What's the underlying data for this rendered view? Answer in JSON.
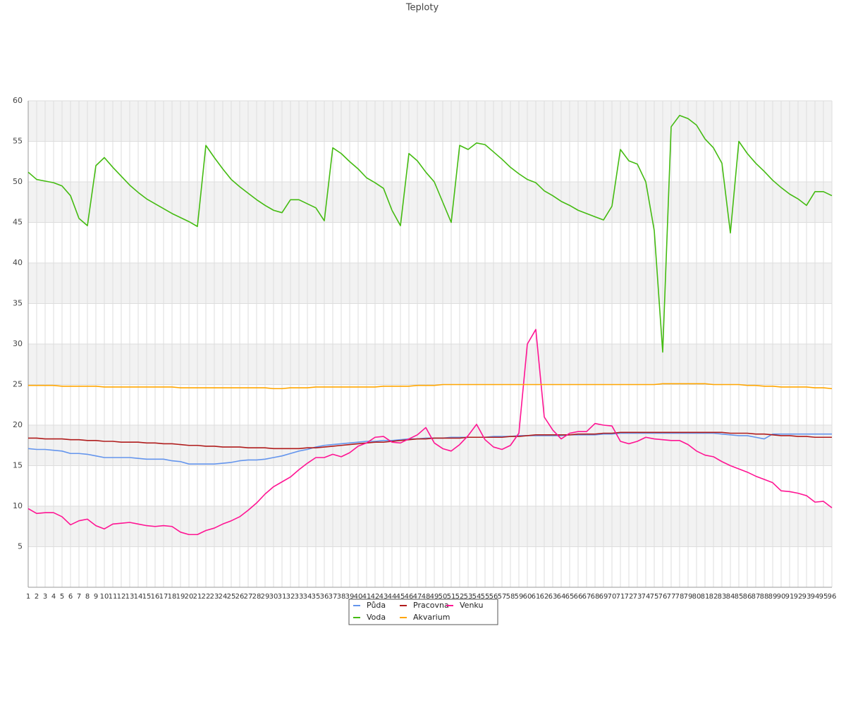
{
  "chart_data": {
    "type": "line",
    "title": "Teploty",
    "categories": [
      1,
      2,
      3,
      4,
      5,
      6,
      7,
      8,
      9,
      10,
      11,
      12,
      13,
      14,
      15,
      16,
      17,
      18,
      19,
      20,
      21,
      22,
      23,
      24,
      25,
      26,
      27,
      28,
      29,
      30,
      31,
      32,
      33,
      34,
      35,
      36,
      37,
      38,
      39,
      40,
      41,
      42,
      43,
      44,
      45,
      46,
      47,
      48,
      49,
      50,
      51,
      52,
      53,
      54,
      55,
      56,
      57,
      58,
      59,
      60,
      61,
      62,
      63,
      64,
      65,
      66,
      67,
      68,
      69,
      70,
      71,
      72,
      73,
      74,
      75,
      76,
      77,
      78,
      79,
      80,
      81,
      82,
      83,
      84,
      85,
      86,
      87,
      88,
      89,
      90,
      91,
      92,
      93,
      94,
      95,
      96
    ],
    "ylim": [
      0,
      60
    ],
    "yticks": [
      5,
      10,
      15,
      20,
      25,
      30,
      35,
      40,
      45,
      50,
      55,
      60
    ],
    "grid": true,
    "series": [
      {
        "name": "Půda",
        "color": "#6495ed",
        "values": [
          17.1,
          17,
          17,
          16.9,
          16.8,
          16.5,
          16.5,
          16.4,
          16.2,
          16,
          16,
          16,
          16,
          15.9,
          15.8,
          15.8,
          15.8,
          15.6,
          15.5,
          15.2,
          15.2,
          15.2,
          15.2,
          15.3,
          15.4,
          15.6,
          15.7,
          15.7,
          15.8,
          16,
          16.2,
          16.5,
          16.8,
          17,
          17.3,
          17.5,
          17.6,
          17.7,
          17.8,
          17.9,
          18,
          18,
          18.1,
          18.1,
          18.2,
          18.3,
          18.3,
          18.4,
          18.4,
          18.4,
          18.5,
          18.5,
          18.5,
          18.5,
          18.5,
          18.6,
          18.6,
          18.6,
          18.7,
          18.7,
          18.7,
          18.7,
          18.7,
          18.7,
          18.8,
          18.8,
          18.8,
          18.8,
          18.9,
          18.9,
          19,
          19,
          19,
          19,
          19,
          19,
          19,
          19,
          19,
          19,
          19,
          19,
          18.9,
          18.8,
          18.7,
          18.7,
          18.5,
          18.3,
          18.9,
          18.9,
          18.9,
          18.9,
          18.9,
          18.9,
          18.9,
          18.9
        ]
      },
      {
        "name": "Pracovna",
        "color": "#b01c1c",
        "values": [
          18.4,
          18.4,
          18.3,
          18.3,
          18.3,
          18.2,
          18.2,
          18.1,
          18.1,
          18,
          18,
          17.9,
          17.9,
          17.9,
          17.8,
          17.8,
          17.7,
          17.7,
          17.6,
          17.5,
          17.5,
          17.4,
          17.4,
          17.3,
          17.3,
          17.3,
          17.2,
          17.2,
          17.2,
          17.1,
          17.1,
          17.1,
          17.1,
          17.2,
          17.2,
          17.3,
          17.4,
          17.5,
          17.6,
          17.7,
          17.8,
          17.9,
          17.9,
          18,
          18.1,
          18.2,
          18.3,
          18.3,
          18.4,
          18.4,
          18.4,
          18.4,
          18.5,
          18.5,
          18.5,
          18.5,
          18.5,
          18.6,
          18.6,
          18.7,
          18.8,
          18.8,
          18.8,
          18.8,
          18.8,
          18.9,
          18.9,
          18.9,
          19,
          19,
          19.1,
          19.1,
          19.1,
          19.1,
          19.1,
          19.1,
          19.1,
          19.1,
          19.1,
          19.1,
          19.1,
          19.1,
          19.1,
          19,
          19,
          19,
          18.9,
          18.9,
          18.8,
          18.7,
          18.7,
          18.6,
          18.6,
          18.5,
          18.5,
          18.5
        ]
      },
      {
        "name": "Venku",
        "color": "#ff1493",
        "values": [
          9.7,
          9.1,
          9.2,
          9.2,
          8.7,
          7.7,
          8.2,
          8.4,
          7.6,
          7.2,
          7.8,
          7.9,
          8,
          7.8,
          7.6,
          7.5,
          7.6,
          7.5,
          6.8,
          6.5,
          6.5,
          7,
          7.3,
          7.8,
          8.2,
          8.7,
          9.5,
          10.4,
          11.5,
          12.4,
          13,
          13.6,
          14.5,
          15.3,
          16,
          16,
          16.4,
          16.1,
          16.6,
          17.4,
          17.8,
          18.5,
          18.6,
          17.9,
          17.8,
          18.3,
          18.8,
          19.7,
          17.8,
          17.1,
          16.8,
          17.6,
          18.7,
          20.1,
          18.2,
          17.3,
          17,
          17.5,
          19,
          30,
          31.8,
          21,
          19.4,
          18.3,
          19,
          19.2,
          19.2,
          20.2,
          20,
          19.9,
          18,
          17.7,
          18,
          18.5,
          18.3,
          18.2,
          18.1,
          18.1,
          17.6,
          16.8,
          16.3,
          16.1,
          15.5,
          15,
          14.6,
          14.2,
          13.7,
          13.3,
          12.9,
          11.9,
          11.8,
          11.6,
          11.3,
          10.5,
          10.6,
          9.8
        ]
      },
      {
        "name": "Voda",
        "color": "#44bb11",
        "values": [
          51.2,
          50.3,
          50.1,
          49.9,
          49.5,
          48.3,
          45.5,
          44.6,
          52,
          53,
          51.8,
          50.7,
          49.6,
          48.7,
          47.9,
          47.3,
          46.7,
          46.1,
          45.6,
          45.1,
          44.5,
          54.5,
          53,
          51.6,
          50.3,
          49.4,
          48.6,
          47.8,
          47.1,
          46.5,
          46.2,
          47.8,
          47.8,
          47.3,
          46.8,
          45.2,
          54.2,
          53.5,
          52.5,
          51.6,
          50.5,
          49.9,
          49.2,
          46.5,
          44.6,
          53.5,
          52.6,
          51.2,
          50,
          47.5,
          45,
          54.5,
          54,
          54.8,
          54.6,
          53.7,
          52.8,
          51.8,
          51,
          50.3,
          49.9,
          48.9,
          48.3,
          47.6,
          47.1,
          46.5,
          46.1,
          45.7,
          45.3,
          47,
          54,
          52.6,
          52.2,
          50,
          44,
          29,
          56.8,
          58.2,
          57.8,
          57,
          55.3,
          54.2,
          52.3,
          43.7,
          55,
          53.5,
          52.3,
          51.3,
          50.2,
          49.3,
          48.5,
          47.9,
          47.1,
          48.8,
          48.8,
          48.3
        ]
      },
      {
        "name": "Akvarium",
        "color": "#ffa500",
        "values": [
          24.9,
          24.9,
          24.9,
          24.9,
          24.8,
          24.8,
          24.8,
          24.8,
          24.8,
          24.7,
          24.7,
          24.7,
          24.7,
          24.7,
          24.7,
          24.7,
          24.7,
          24.7,
          24.6,
          24.6,
          24.6,
          24.6,
          24.6,
          24.6,
          24.6,
          24.6,
          24.6,
          24.6,
          24.6,
          24.5,
          24.5,
          24.6,
          24.6,
          24.6,
          24.7,
          24.7,
          24.7,
          24.7,
          24.7,
          24.7,
          24.7,
          24.7,
          24.8,
          24.8,
          24.8,
          24.8,
          24.9,
          24.9,
          24.9,
          25,
          25,
          25,
          25,
          25,
          25,
          25,
          25,
          25,
          25,
          25,
          25,
          25,
          25,
          25,
          25,
          25,
          25,
          25,
          25,
          25,
          25,
          25,
          25,
          25,
          25,
          25.1,
          25.1,
          25.1,
          25.1,
          25.1,
          25.1,
          25,
          25,
          25,
          25,
          24.9,
          24.9,
          24.8,
          24.8,
          24.7,
          24.7,
          24.7,
          24.7,
          24.6,
          24.6,
          24.5
        ]
      }
    ]
  }
}
